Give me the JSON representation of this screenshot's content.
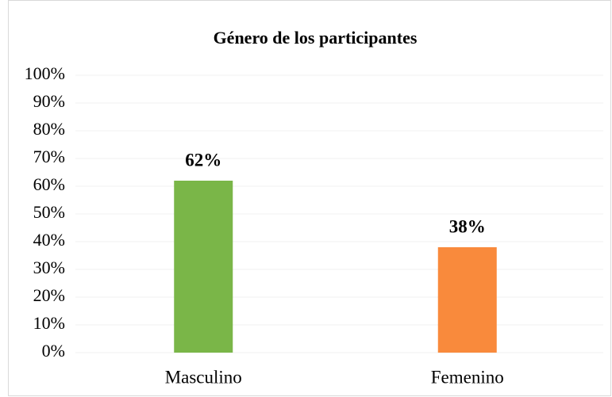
{
  "chart_data": {
    "type": "bar",
    "title": "Género de los participantes",
    "categories": [
      "Masculino",
      "Femenino"
    ],
    "values": [
      62,
      38
    ],
    "value_labels": [
      "62%",
      "38%"
    ],
    "colors": [
      "#7ab648",
      "#f98a3c"
    ],
    "ylim": [
      0,
      100
    ],
    "yticks": [
      {
        "value": 0,
        "label": "0%"
      },
      {
        "value": 10,
        "label": "10%"
      },
      {
        "value": 20,
        "label": "20%"
      },
      {
        "value": 30,
        "label": "30%"
      },
      {
        "value": 40,
        "label": "40%"
      },
      {
        "value": 50,
        "label": "50%"
      },
      {
        "value": 60,
        "label": "60%"
      },
      {
        "value": 70,
        "label": "70%"
      },
      {
        "value": 80,
        "label": "80%"
      },
      {
        "value": 90,
        "label": "90%"
      },
      {
        "value": 100,
        "label": "100%"
      }
    ],
    "grid": true
  }
}
